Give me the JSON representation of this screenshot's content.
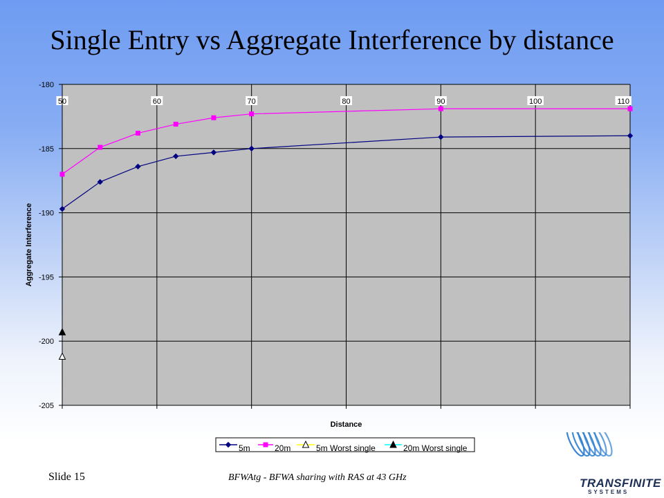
{
  "slide": {
    "title": "Single Entry vs Aggregate Interference by distance",
    "slide_number": "Slide 15",
    "footer": "BFWAtg - BFWA sharing with RAS at 43 GHz",
    "logo_word": "TRANSFINITE",
    "logo_sub": "SYSTEMS"
  },
  "chart_data": {
    "type": "line",
    "xlabel": "Distance",
    "ylabel": "Aggregate Interference",
    "xlim": [
      50,
      110
    ],
    "ylim": [
      -205,
      -180
    ],
    "xticks": [
      50,
      60,
      70,
      80,
      90,
      100,
      110
    ],
    "yticks": [
      -180,
      -185,
      -190,
      -195,
      -200,
      -205
    ],
    "grid": true,
    "legend_position": "bottom",
    "plot_background": "#c0c0c0",
    "series": [
      {
        "name": "5m",
        "color": "#000080",
        "marker": "diamond",
        "x": [
          50,
          54,
          58,
          62,
          66,
          70,
          90,
          110
        ],
        "y": [
          -189.7,
          -187.6,
          -186.4,
          -185.6,
          -185.3,
          -185.0,
          -184.1,
          -184.0
        ]
      },
      {
        "name": "20m",
        "color": "#ff00ff",
        "marker": "square",
        "x": [
          50,
          54,
          58,
          62,
          66,
          70,
          90,
          110
        ],
        "y": [
          -187.0,
          -184.9,
          -183.8,
          -183.1,
          -182.6,
          -182.3,
          -181.9,
          -181.9
        ]
      },
      {
        "name": "5m Worst single",
        "color": "#ffff00",
        "marker": "triangle-open",
        "x": [
          50
        ],
        "y": [
          -201.2
        ]
      },
      {
        "name": "20m Worst single",
        "color": "#00ffff",
        "marker": "triangle-filled",
        "x": [
          50
        ],
        "y": [
          -199.3
        ]
      }
    ]
  }
}
